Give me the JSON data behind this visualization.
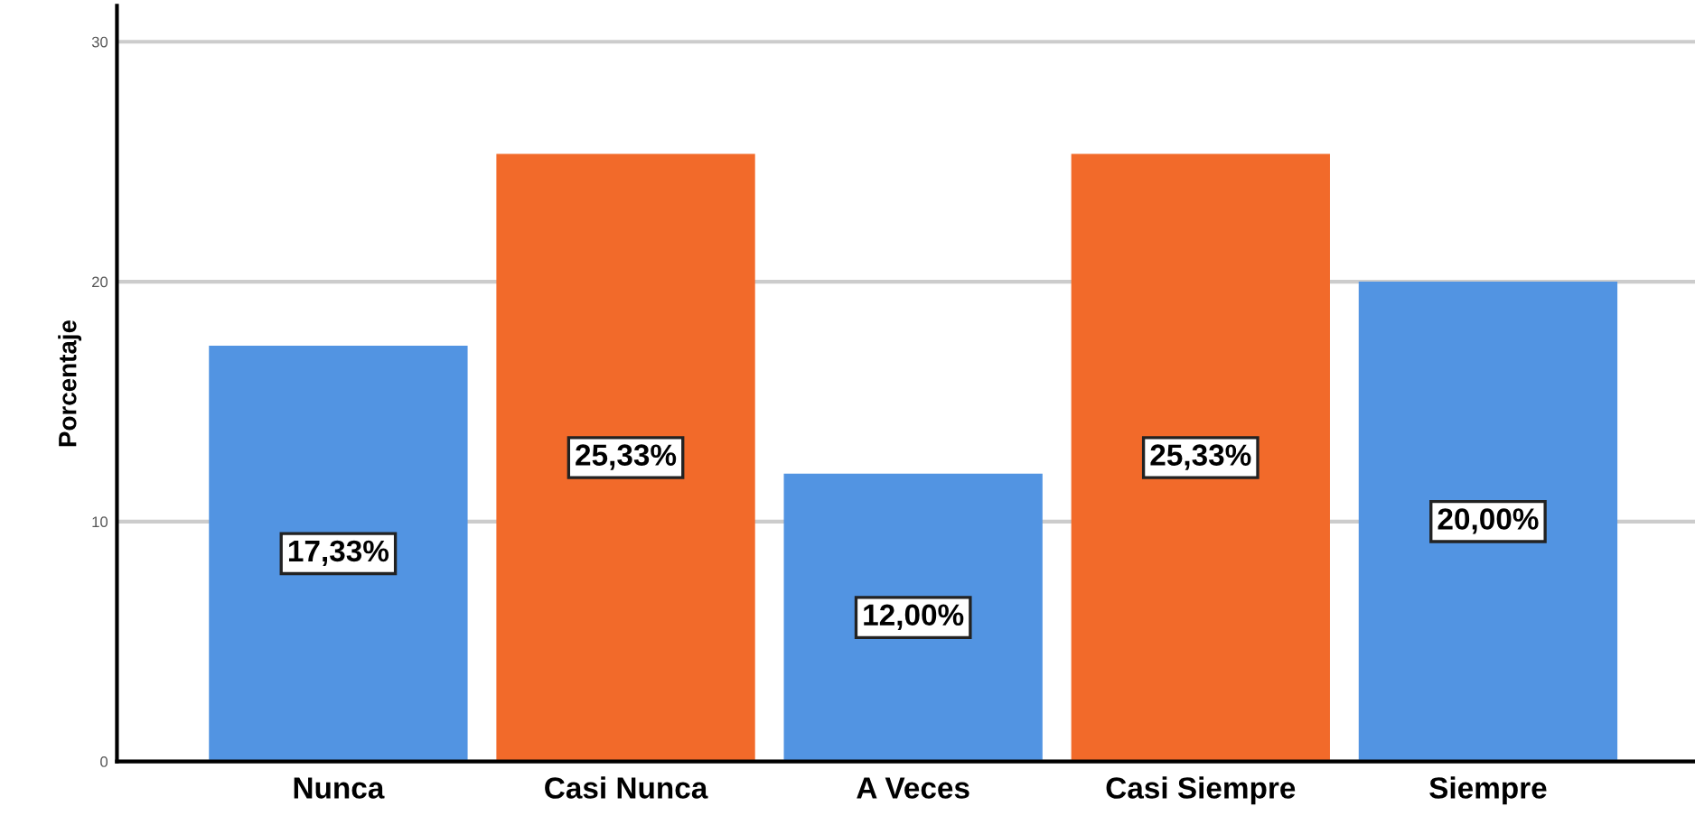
{
  "chart_data": {
    "type": "bar",
    "ylabel": "Porcentaje",
    "categories": [
      "Nunca",
      "Casi Nunca",
      "A Veces",
      "Casi Siempre",
      "Siempre"
    ],
    "values": [
      17.33,
      25.33,
      12.0,
      25.33,
      20.0
    ],
    "colors": [
      "#5294e2",
      "#f26a2a",
      "#5294e2",
      "#f26a2a",
      "#5294e2"
    ],
    "value_labels": [
      "17,33%",
      "25,33%",
      "12,00%",
      "25,33%",
      "20,00%"
    ],
    "ylim": [
      0,
      31.5
    ],
    "yticks": [
      0,
      10,
      20,
      30
    ],
    "grid": "y",
    "legend": false
  }
}
